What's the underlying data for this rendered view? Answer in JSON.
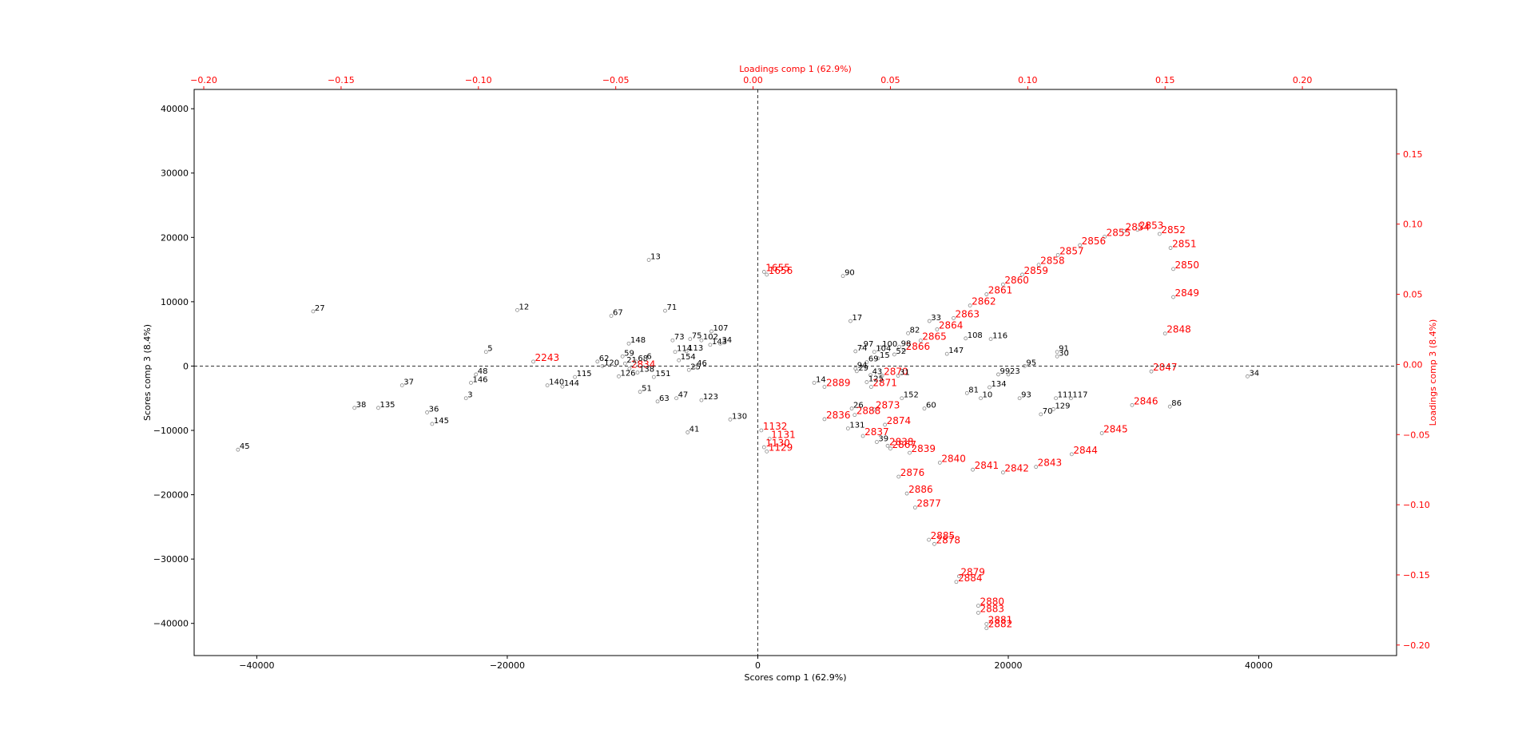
{
  "chart_data": {
    "type": "scatter",
    "title": "",
    "xlabel": "Scores comp 1 (62.9%)",
    "ylabel": "Scores comp 3 (8.4%)",
    "x2label": "Loadings comp 1 (62.9%)",
    "y2label": "Loadings comp 3 (8.4%)",
    "xlim": [
      -45000,
      51000
    ],
    "ylim": [
      -45000,
      43000
    ],
    "x2lim": [
      -0.2035,
      0.2343
    ],
    "y2lim": [
      -0.2075,
      0.196
    ],
    "grid": false,
    "colors": {
      "scores": "#000000",
      "loadings": "#ff0000",
      "marker": "#888888"
    },
    "xticks": [
      -40000,
      -20000,
      0,
      20000,
      40000
    ],
    "yticks": [
      -40000,
      -30000,
      -20000,
      -10000,
      0,
      10000,
      20000,
      30000,
      40000
    ],
    "x2ticks": [
      -0.2,
      -0.15,
      -0.1,
      -0.05,
      0.0,
      0.05,
      0.1,
      0.15,
      0.2
    ],
    "y2ticks": [
      -0.2,
      -0.15,
      -0.1,
      -0.05,
      0.0,
      0.05,
      0.1,
      0.15
    ],
    "xtick_labels": [
      "−40000",
      "−20000",
      "0",
      "20000",
      "40000"
    ],
    "ytick_labels": [
      "−40000",
      "−30000",
      "−20000",
      "−10000",
      "0",
      "10000",
      "20000",
      "30000",
      "40000"
    ],
    "x2tick_labels": [
      "−0.20",
      "−0.15",
      "−0.10",
      "−0.05",
      "0.00",
      "0.05",
      "0.10",
      "0.15",
      "0.20"
    ],
    "y2tick_labels": [
      "−0.20",
      "−0.15",
      "−0.10",
      "−0.05",
      "0.00",
      "0.05",
      "0.10",
      "0.15"
    ],
    "scores": [
      {
        "label": "45",
        "x": -41500,
        "y": -13000
      },
      {
        "label": "27",
        "x": -35500,
        "y": 8500
      },
      {
        "label": "38",
        "x": -32200,
        "y": -6500
      },
      {
        "label": "135",
        "x": -30300,
        "y": -6500
      },
      {
        "label": "37",
        "x": -28400,
        "y": -3000
      },
      {
        "label": "36",
        "x": -26400,
        "y": -7200
      },
      {
        "label": "145",
        "x": -26000,
        "y": -9000
      },
      {
        "label": "3",
        "x": -23300,
        "y": -5000
      },
      {
        "label": "146",
        "x": -22900,
        "y": -2600
      },
      {
        "label": "48",
        "x": -22500,
        "y": -1300
      },
      {
        "label": "5",
        "x": -21700,
        "y": 2200
      },
      {
        "label": "12",
        "x": -19200,
        "y": 8700
      },
      {
        "label": "115",
        "x": -14600,
        "y": -1700
      },
      {
        "label": "140",
        "x": -16800,
        "y": -3000
      },
      {
        "label": "144",
        "x": -15600,
        "y": -3200
      },
      {
        "label": "62",
        "x": -12800,
        "y": 700
      },
      {
        "label": "120",
        "x": -12400,
        "y": 0
      },
      {
        "label": "126",
        "x": -11100,
        "y": -1600
      },
      {
        "label": "67",
        "x": -11700,
        "y": 7800
      },
      {
        "label": "59",
        "x": -10800,
        "y": 1500
      },
      {
        "label": "21",
        "x": -10600,
        "y": 400
      },
      {
        "label": "68",
        "x": -9700,
        "y": 700
      },
      {
        "label": "6",
        "x": -9000,
        "y": 1000
      },
      {
        "label": "148",
        "x": -10300,
        "y": 3500
      },
      {
        "label": "138",
        "x": -9600,
        "y": -1000
      },
      {
        "label": "151",
        "x": -8300,
        "y": -1700
      },
      {
        "label": "51",
        "x": -9400,
        "y": -4000
      },
      {
        "label": "63",
        "x": -8000,
        "y": -5500
      },
      {
        "label": "47",
        "x": -6500,
        "y": -5000
      },
      {
        "label": "13",
        "x": -8700,
        "y": 16500
      },
      {
        "label": "71",
        "x": -7400,
        "y": 8600
      },
      {
        "label": "73",
        "x": -6800,
        "y": 4000
      },
      {
        "label": "114",
        "x": -6600,
        "y": 2200
      },
      {
        "label": "113",
        "x": -5700,
        "y": 2300
      },
      {
        "label": "154",
        "x": -6300,
        "y": 900
      },
      {
        "label": "75",
        "x": -5400,
        "y": 4200
      },
      {
        "label": "102",
        "x": -4500,
        "y": 4000
      },
      {
        "label": "143",
        "x": -3800,
        "y": 3300
      },
      {
        "label": "34",
        "x": -3000,
        "y": 3500
      },
      {
        "label": "107",
        "x": -3700,
        "y": 5400
      },
      {
        "label": "25",
        "x": -5500,
        "y": -600
      },
      {
        "label": "46",
        "x": -5000,
        "y": -100
      },
      {
        "label": "123",
        "x": -4500,
        "y": -5300
      },
      {
        "label": "41",
        "x": -5600,
        "y": -10300
      },
      {
        "label": "130",
        "x": -2200,
        "y": -8300
      },
      {
        "label": "90",
        "x": 6800,
        "y": 14000
      },
      {
        "label": "17",
        "x": 7400,
        "y": 7000
      },
      {
        "label": "33",
        "x": 13700,
        "y": 7000
      },
      {
        "label": "82",
        "x": 12000,
        "y": 5100
      },
      {
        "label": "108",
        "x": 16600,
        "y": 4300
      },
      {
        "label": "116",
        "x": 18600,
        "y": 4200
      },
      {
        "label": "147",
        "x": 15100,
        "y": 1900
      },
      {
        "label": "97",
        "x": 8300,
        "y": 2900
      },
      {
        "label": "100",
        "x": 9800,
        "y": 2900
      },
      {
        "label": "98",
        "x": 11300,
        "y": 3000
      },
      {
        "label": "74",
        "x": 7800,
        "y": 2300
      },
      {
        "label": "104",
        "x": 9300,
        "y": 2200
      },
      {
        "label": "52",
        "x": 10900,
        "y": 1800
      },
      {
        "label": "15",
        "x": 9600,
        "y": 1200
      },
      {
        "label": "69",
        "x": 8700,
        "y": 600
      },
      {
        "label": "94",
        "x": 7800,
        "y": -400
      },
      {
        "label": "29",
        "x": 7900,
        "y": -800
      },
      {
        "label": "43",
        "x": 9000,
        "y": -1400
      },
      {
        "label": "125",
        "x": 8700,
        "y": -2500
      },
      {
        "label": "31",
        "x": 11200,
        "y": -1500
      },
      {
        "label": "14",
        "x": 4500,
        "y": -2600
      },
      {
        "label": "152",
        "x": 11500,
        "y": -5000
      },
      {
        "label": "60",
        "x": 13300,
        "y": -6600
      },
      {
        "label": "26",
        "x": 7500,
        "y": -6600
      },
      {
        "label": "131",
        "x": 7200,
        "y": -9700
      },
      {
        "label": "39",
        "x": 9500,
        "y": -11800
      },
      {
        "label": "81",
        "x": 16700,
        "y": -4200
      },
      {
        "label": "10",
        "x": 17800,
        "y": -5000
      },
      {
        "label": "134",
        "x": 18500,
        "y": -3300
      },
      {
        "label": "99",
        "x": 19200,
        "y": -1300
      },
      {
        "label": "23",
        "x": 20000,
        "y": -1300
      },
      {
        "label": "95",
        "x": 21300,
        "y": 0
      },
      {
        "label": "93",
        "x": 20900,
        "y": -5000
      },
      {
        "label": "70",
        "x": 22600,
        "y": -7500
      },
      {
        "label": "129",
        "x": 23600,
        "y": -6700
      },
      {
        "label": "111",
        "x": 23800,
        "y": -5000
      },
      {
        "label": "117",
        "x": 25000,
        "y": -5000
      },
      {
        "label": "91",
        "x": 23900,
        "y": 2200
      },
      {
        "label": "30",
        "x": 23900,
        "y": 1500
      },
      {
        "label": "86",
        "x": 32900,
        "y": -6300
      },
      {
        "label": "34",
        "x": 39100,
        "y": -1600
      }
    ],
    "loadings": [
      {
        "label": "2853",
        "x": 0.14,
        "y": 0.096
      },
      {
        "label": "2854",
        "x": 0.135,
        "y": 0.095
      },
      {
        "label": "2855",
        "x": 0.128,
        "y": 0.091
      },
      {
        "label": "2852",
        "x": 0.148,
        "y": 0.093
      },
      {
        "label": "2851",
        "x": 0.152,
        "y": 0.083
      },
      {
        "label": "2856",
        "x": 0.119,
        "y": 0.085
      },
      {
        "label": "2857",
        "x": 0.111,
        "y": 0.078
      },
      {
        "label": "2858",
        "x": 0.104,
        "y": 0.071
      },
      {
        "label": "2850",
        "x": 0.153,
        "y": 0.068
      },
      {
        "label": "2859",
        "x": 0.098,
        "y": 0.064
      },
      {
        "label": "2860",
        "x": 0.091,
        "y": 0.057
      },
      {
        "label": "2861",
        "x": 0.085,
        "y": 0.05
      },
      {
        "label": "2849",
        "x": 0.153,
        "y": 0.048
      },
      {
        "label": "2862",
        "x": 0.079,
        "y": 0.042
      },
      {
        "label": "2863",
        "x": 0.073,
        "y": 0.033
      },
      {
        "label": "2864",
        "x": 0.067,
        "y": 0.025
      },
      {
        "label": "2848",
        "x": 0.15,
        "y": 0.022
      },
      {
        "label": "2865",
        "x": 0.061,
        "y": 0.017
      },
      {
        "label": "2866",
        "x": 0.055,
        "y": 0.01
      },
      {
        "label": "2847",
        "x": 0.145,
        "y": -0.005
      },
      {
        "label": "2846",
        "x": 0.138,
        "y": -0.029
      },
      {
        "label": "2845",
        "x": 0.127,
        "y": -0.049
      },
      {
        "label": "2844",
        "x": 0.116,
        "y": -0.064
      },
      {
        "label": "2843",
        "x": 0.103,
        "y": -0.073
      },
      {
        "label": "2842",
        "x": 0.091,
        "y": -0.077
      },
      {
        "label": "2841",
        "x": 0.08,
        "y": -0.075
      },
      {
        "label": "2840",
        "x": 0.068,
        "y": -0.07
      },
      {
        "label": "2839",
        "x": 0.057,
        "y": -0.063
      },
      {
        "label": "2838",
        "x": 0.049,
        "y": -0.058
      },
      {
        "label": "2837",
        "x": 0.04,
        "y": -0.051
      },
      {
        "label": "2873",
        "x": 0.044,
        "y": -0.032
      },
      {
        "label": "2874",
        "x": 0.048,
        "y": -0.043
      },
      {
        "label": "2871",
        "x": 0.043,
        "y": -0.016
      },
      {
        "label": "2870",
        "x": 0.047,
        "y": -0.008
      },
      {
        "label": "2867",
        "x": 0.05,
        "y": -0.06
      },
      {
        "label": "2876",
        "x": 0.053,
        "y": -0.08
      },
      {
        "label": "2886",
        "x": 0.056,
        "y": -0.092
      },
      {
        "label": "2877",
        "x": 0.059,
        "y": -0.102
      },
      {
        "label": "2885",
        "x": 0.064,
        "y": -0.125
      },
      {
        "label": "2878",
        "x": 0.066,
        "y": -0.128
      },
      {
        "label": "2879",
        "x": 0.075,
        "y": -0.151
      },
      {
        "label": "2884",
        "x": 0.074,
        "y": -0.155
      },
      {
        "label": "2880",
        "x": 0.082,
        "y": -0.172
      },
      {
        "label": "2883",
        "x": 0.082,
        "y": -0.177
      },
      {
        "label": "2881",
        "x": 0.085,
        "y": -0.185
      },
      {
        "label": "2882",
        "x": 0.085,
        "y": -0.188
      },
      {
        "label": "2889",
        "x": 0.026,
        "y": -0.016
      },
      {
        "label": "2888",
        "x": 0.037,
        "y": -0.036
      },
      {
        "label": "2836",
        "x": 0.026,
        "y": -0.039
      },
      {
        "label": "2834",
        "x": -0.045,
        "y": -0.003
      },
      {
        "label": "2243",
        "x": -0.08,
        "y": 0.002
      },
      {
        "label": "1132",
        "x": 0.003,
        "y": -0.047
      },
      {
        "label": "1131",
        "x": 0.006,
        "y": -0.053
      },
      {
        "label": "1130",
        "x": 0.004,
        "y": -0.059
      },
      {
        "label": "1129",
        "x": 0.005,
        "y": -0.062
      },
      {
        "label": "1655",
        "x": 0.004,
        "y": 0.066
      },
      {
        "label": "1656",
        "x": 0.005,
        "y": 0.064
      }
    ]
  }
}
